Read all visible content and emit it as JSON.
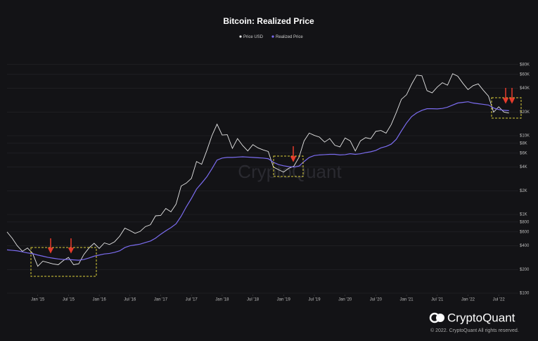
{
  "chart_data": {
    "type": "line",
    "title": "Bitcoin: Realized Price",
    "watermark": "CryptoQuant",
    "brand": "CryptoQuant",
    "copyright": "© 2022. CryptoQuant All rights reserved.",
    "x": [
      "2014-07",
      "2014-08",
      "2014-09",
      "2014-10",
      "2014-11",
      "2014-12",
      "2015-01",
      "2015-02",
      "2015-03",
      "2015-04",
      "2015-05",
      "2015-06",
      "2015-07",
      "2015-08",
      "2015-09",
      "2015-10",
      "2015-11",
      "2015-12",
      "2016-01",
      "2016-02",
      "2016-03",
      "2016-04",
      "2016-05",
      "2016-06",
      "2016-07",
      "2016-08",
      "2016-09",
      "2016-10",
      "2016-11",
      "2016-12",
      "2017-01",
      "2017-02",
      "2017-03",
      "2017-04",
      "2017-05",
      "2017-06",
      "2017-07",
      "2017-08",
      "2017-09",
      "2017-10",
      "2017-11",
      "2017-12",
      "2018-01",
      "2018-02",
      "2018-03",
      "2018-04",
      "2018-05",
      "2018-06",
      "2018-07",
      "2018-08",
      "2018-09",
      "2018-10",
      "2018-11",
      "2018-12",
      "2019-01",
      "2019-02",
      "2019-03",
      "2019-04",
      "2019-05",
      "2019-06",
      "2019-07",
      "2019-08",
      "2019-09",
      "2019-10",
      "2019-11",
      "2019-12",
      "2020-01",
      "2020-02",
      "2020-03",
      "2020-04",
      "2020-05",
      "2020-06",
      "2020-07",
      "2020-08",
      "2020-09",
      "2020-10",
      "2020-11",
      "2020-12",
      "2021-01",
      "2021-02",
      "2021-03",
      "2021-04",
      "2021-05",
      "2021-06",
      "2021-07",
      "2021-08",
      "2021-09",
      "2021-10",
      "2021-11",
      "2021-12",
      "2022-01",
      "2022-02",
      "2022-03",
      "2022-04",
      "2022-05",
      "2022-06",
      "2022-07",
      "2022-08",
      "2022-09"
    ],
    "series": [
      {
        "name": "Price USD",
        "color": "#e6e6e6",
        "values": [
          600,
          500,
          400,
          340,
          375,
          320,
          220,
          255,
          245,
          235,
          230,
          260,
          285,
          230,
          236,
          310,
          375,
          430,
          370,
          435,
          415,
          450,
          530,
          670,
          625,
          575,
          610,
          700,
          740,
          960,
          970,
          1190,
          1080,
          1350,
          2300,
          2500,
          2870,
          4700,
          4340,
          6470,
          10000,
          14000,
          10200,
          10300,
          6900,
          9200,
          7500,
          6400,
          7700,
          7000,
          6600,
          6300,
          4000,
          3700,
          3450,
          3850,
          4100,
          5300,
          8600,
          10800,
          10100,
          9600,
          8300,
          9200,
          7550,
          7200,
          9350,
          8600,
          6400,
          8600,
          9450,
          9140,
          11350,
          11650,
          10780,
          13800,
          19700,
          29000,
          33100,
          45200,
          58800,
          57700,
          37300,
          35000,
          41500,
          47100,
          43800,
          61300,
          57000,
          46300,
          38500,
          43200,
          45500,
          37700,
          31800,
          19900,
          23300,
          20000,
          19400
        ]
      },
      {
        "name": "Realized Price",
        "color": "#7b6cf0",
        "values": [
          355,
          350,
          345,
          335,
          325,
          318,
          305,
          295,
          285,
          278,
          272,
          268,
          268,
          265,
          262,
          268,
          280,
          295,
          305,
          315,
          320,
          330,
          345,
          380,
          400,
          410,
          420,
          440,
          460,
          500,
          560,
          620,
          680,
          760,
          950,
          1250,
          1600,
          2100,
          2500,
          3000,
          3800,
          4900,
          5200,
          5300,
          5300,
          5350,
          5400,
          5350,
          5300,
          5250,
          5200,
          5100,
          4600,
          4300,
          4150,
          4050,
          4000,
          4100,
          4700,
          5300,
          5600,
          5700,
          5750,
          5800,
          5800,
          5700,
          5750,
          5900,
          5800,
          5900,
          6100,
          6250,
          6500,
          7000,
          7300,
          7800,
          9000,
          11500,
          14500,
          17500,
          19500,
          21000,
          22000,
          22000,
          21900,
          22200,
          23000,
          24500,
          26000,
          26500,
          27000,
          26000,
          25500,
          25000,
          24500,
          22500,
          21500,
          21000,
          20800
        ]
      }
    ],
    "xlim": [
      "2014-07",
      "2022-10"
    ],
    "xticks": [
      {
        "value": "2015-01",
        "label": "Jan '15"
      },
      {
        "value": "2015-07",
        "label": "Jul '15"
      },
      {
        "value": "2016-01",
        "label": "Jan '16"
      },
      {
        "value": "2016-07",
        "label": "Jul '16"
      },
      {
        "value": "2017-01",
        "label": "Jan '17"
      },
      {
        "value": "2017-07",
        "label": "Jul '17"
      },
      {
        "value": "2018-01",
        "label": "Jan '18"
      },
      {
        "value": "2018-07",
        "label": "Jul '18"
      },
      {
        "value": "2019-01",
        "label": "Jan '19"
      },
      {
        "value": "2019-07",
        "label": "Jul '19"
      },
      {
        "value": "2020-01",
        "label": "Jan '20"
      },
      {
        "value": "2020-07",
        "label": "Jul '20"
      },
      {
        "value": "2021-01",
        "label": "Jan '21"
      },
      {
        "value": "2021-07",
        "label": "Jul '21"
      },
      {
        "value": "2022-01",
        "label": "Jan '22"
      },
      {
        "value": "2022-07",
        "label": "Jul '22"
      }
    ],
    "ylim": [
      100,
      100000
    ],
    "log_scale": true,
    "grid": true,
    "yticks": [
      {
        "value": 100,
        "label": "$100"
      },
      {
        "value": 200,
        "label": "$200"
      },
      {
        "value": 400,
        "label": "$400"
      },
      {
        "value": 600,
        "label": "$600"
      },
      {
        "value": 800,
        "label": "$800"
      },
      {
        "value": 1000,
        "label": "$1K"
      },
      {
        "value": 2000,
        "label": "$2K"
      },
      {
        "value": 4000,
        "label": "$4K"
      },
      {
        "value": 6000,
        "label": "$6K"
      },
      {
        "value": 8000,
        "label": "$8K"
      },
      {
        "value": 10000,
        "label": "$10K"
      },
      {
        "value": 20000,
        "label": "$20K"
      },
      {
        "value": 40000,
        "label": "$40K"
      },
      {
        "value": 60000,
        "label": "$60K"
      },
      {
        "value": 80000,
        "label": "$80K"
      }
    ]
  }
}
